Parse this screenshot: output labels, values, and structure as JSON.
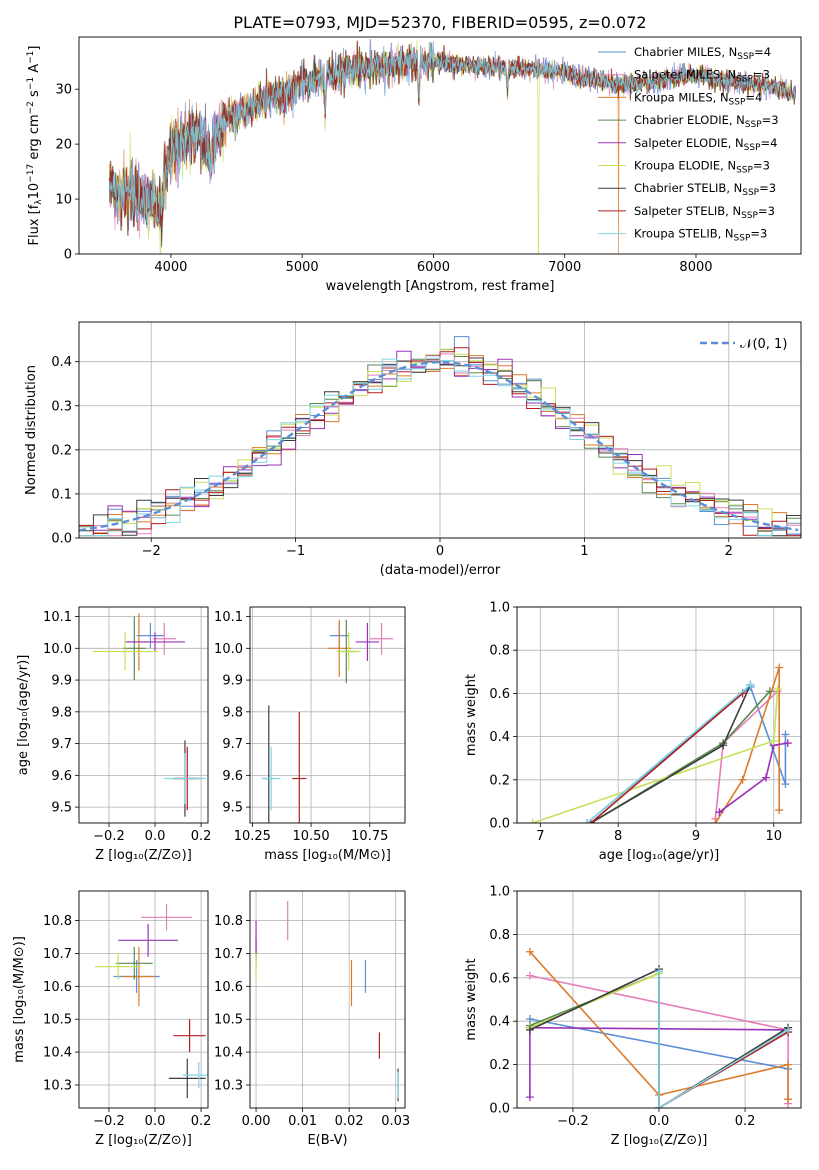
{
  "figure": {
    "title": "PLATE=0793, MJD=52370, FIBERID=0595, z=0.072"
  },
  "colors": {
    "Chabrier MILES": "#5b8fd6",
    "Salpeter MILES": "#e67dbb",
    "Kroupa MILES": "#de7b2a",
    "Chabrier ELODIE": "#5a8a50",
    "Salpeter ELODIE": "#9a33b8",
    "Kroupa ELODIE": "#c7e05a",
    "Chabrier STELIB": "#3d3d3d",
    "Salpeter STELIB": "#b21f1f",
    "Kroupa STELIB": "#7fd4e3"
  },
  "chart_data": [
    {
      "id": "spectrum",
      "type": "line",
      "xlabel": "wavelength [Angstrom, rest frame]",
      "ylabel": "Flux [f_λ 10^-17 erg cm^-2 s^-1 A^-1]",
      "xlim": [
        3300,
        8800
      ],
      "ylim": [
        0,
        39.5
      ],
      "xticks": [
        4000,
        5000,
        6000,
        7000,
        8000
      ],
      "yticks": [
        0,
        10,
        20,
        30
      ],
      "legend_position": "upper right",
      "series": [
        {
          "name": "Chabrier MILES",
          "nssp": "4"
        },
        {
          "name": "Salpeter MILES",
          "nssp": "3"
        },
        {
          "name": "Kroupa MILES",
          "nssp": "4"
        },
        {
          "name": "Chabrier ELODIE",
          "nssp": "3"
        },
        {
          "name": "Salpeter ELODIE",
          "nssp": "4"
        },
        {
          "name": "Kroupa ELODIE",
          "nssp": "3"
        },
        {
          "name": "Chabrier STELIB",
          "nssp": "3"
        },
        {
          "name": "Salpeter STELIB",
          "nssp": "3"
        },
        {
          "name": "Kroupa STELIB",
          "nssp": "3"
        }
      ],
      "continuum": {
        "x": [
          3530,
          3700,
          3800,
          3900,
          3950,
          4000,
          4100,
          4200,
          4300,
          4400,
          4600,
          4800,
          5000,
          5200,
          5400,
          5600,
          5800,
          6000,
          6200,
          6400,
          6600,
          6800,
          7000,
          7200,
          7400,
          7600,
          7800,
          8000,
          8200,
          8400,
          8600,
          8760
        ],
        "y": [
          12,
          11,
          10,
          9,
          13,
          19,
          21,
          22,
          18,
          24,
          26.5,
          29,
          31,
          32.5,
          33.5,
          34,
          34.8,
          35,
          34.5,
          34,
          34,
          33.6,
          33,
          32,
          31,
          31,
          32,
          32.5,
          31.5,
          31,
          30.5,
          29
        ]
      },
      "features": [
        {
          "x": 3930,
          "y": 6
        },
        {
          "x": 4305,
          "y": 16
        },
        {
          "x": 4861,
          "y": 27
        },
        {
          "x": 5175,
          "y": 25
        },
        {
          "x": 5890,
          "y": 28.5
        },
        {
          "x": 6563,
          "y": 30
        }
      ],
      "spikes": [
        {
          "series": "Kroupa ELODIE",
          "x": 3920,
          "y": 0
        },
        {
          "series": "Kroupa ELODIE",
          "x": 6800,
          "y": 0
        },
        {
          "series": "Kroupa MILES",
          "x": 7410,
          "y": 0
        }
      ]
    },
    {
      "id": "residuals",
      "type": "step",
      "xlabel": "(data-model)/error",
      "ylabel": "Normed distribution",
      "xlim": [
        -2.5,
        2.5
      ],
      "ylim": [
        0,
        0.49
      ],
      "xticks": [
        -2,
        -1,
        0,
        1,
        2
      ],
      "xtick_labels": [
        "−2",
        "−1",
        "0",
        "1",
        "2"
      ],
      "yticks": [
        0.0,
        0.1,
        0.2,
        0.3,
        0.4
      ],
      "yticks_labels": [
        "0.0",
        "0.1",
        "0.2",
        "0.3",
        "0.4"
      ],
      "bin_width": 0.1,
      "legend": "𝒩(0, 1)",
      "legend_position": "upper right",
      "reference": {
        "name": "𝒩(0, 1)",
        "mean": 0,
        "sigma": 1
      }
    },
    {
      "id": "age_vs_Z",
      "type": "scatter",
      "xlabel": "Z [log₁₀(Z/Z⊙)]",
      "ylabel": "age  [log₁₀(age/yr)]",
      "xlim": [
        -0.33,
        0.23
      ],
      "ylim": [
        9.45,
        10.13
      ],
      "xticks": [
        -0.2,
        0.0,
        0.2
      ],
      "xtick_labels": [
        "−0.2",
        "0.0",
        "0.2"
      ],
      "yticks": [
        9.5,
        9.6,
        9.7,
        9.8,
        9.9,
        10.0,
        10.1
      ],
      "points": [
        {
          "series": "Chabrier MILES",
          "x": -0.02,
          "y": 10.04,
          "xerr": 0.06,
          "yerr": 0.04
        },
        {
          "series": "Salpeter MILES",
          "x": 0.04,
          "y": 10.03,
          "xerr": 0.05,
          "yerr": 0.05
        },
        {
          "series": "Kroupa MILES",
          "x": -0.07,
          "y": 10.02,
          "xerr": 0.06,
          "yerr": 0.09
        },
        {
          "series": "Chabrier ELODIE",
          "x": -0.09,
          "y": 10.0,
          "xerr": 0.05,
          "yerr": 0.1
        },
        {
          "series": "Salpeter ELODIE",
          "x": 0.0,
          "y": 10.02,
          "xerr": 0.13,
          "yerr": 0.03
        },
        {
          "series": "Kroupa ELODIE",
          "x": -0.13,
          "y": 9.99,
          "xerr": 0.14,
          "yerr": 0.06
        },
        {
          "series": "Chabrier STELIB",
          "x": 0.13,
          "y": 9.59,
          "xerr": 0.05,
          "yerr": 0.12
        },
        {
          "series": "Salpeter STELIB",
          "x": 0.14,
          "y": 9.59,
          "xerr": 0.06,
          "yerr": 0.1
        },
        {
          "series": "Kroupa STELIB",
          "x": 0.13,
          "y": 9.59,
          "xerr": 0.09,
          "yerr": 0.08
        }
      ]
    },
    {
      "id": "age_vs_mass",
      "type": "scatter",
      "xlabel": "mass [log₁₀(M/M⊙)]",
      "ylabel": "",
      "xlim": [
        10.24,
        10.9
      ],
      "ylim": [
        9.45,
        10.13
      ],
      "xticks": [
        10.25,
        10.5,
        10.75
      ],
      "xtick_labels": [
        "10.25",
        "10.50",
        "10.75"
      ],
      "yticks": [
        9.5,
        9.6,
        9.7,
        9.8,
        9.9,
        10.0,
        10.1
      ],
      "points": [
        {
          "series": "Chabrier MILES",
          "x": 10.62,
          "y": 10.04,
          "xerr": 0.04,
          "yerr": 0.04
        },
        {
          "series": "Salpeter MILES",
          "x": 10.8,
          "y": 10.03,
          "xerr": 0.05,
          "yerr": 0.05
        },
        {
          "series": "Kroupa MILES",
          "x": 10.62,
          "y": 10.0,
          "xerr": 0.05,
          "yerr": 0.09
        },
        {
          "series": "Chabrier ELODIE",
          "x": 10.65,
          "y": 9.99,
          "xerr": 0.04,
          "yerr": 0.1
        },
        {
          "series": "Salpeter ELODIE",
          "x": 10.74,
          "y": 10.02,
          "xerr": 0.05,
          "yerr": 0.06
        },
        {
          "series": "Kroupa ELODIE",
          "x": 10.66,
          "y": 9.99,
          "xerr": 0.05,
          "yerr": 0.06
        },
        {
          "series": "Chabrier STELIB",
          "x": 10.32,
          "y": 9.59,
          "xerr": 0.02,
          "yerr": 0.23
        },
        {
          "series": "Salpeter STELIB",
          "x": 10.45,
          "y": 9.59,
          "xerr": 0.03,
          "yerr": 0.21
        },
        {
          "series": "Kroupa STELIB",
          "x": 10.33,
          "y": 9.59,
          "xerr": 0.04,
          "yerr": 0.1
        }
      ]
    },
    {
      "id": "weight_vs_age",
      "type": "line",
      "xlabel": "age  [log₁₀(age/yr)]",
      "ylabel": "mass weight",
      "xlim": [
        6.7,
        10.35
      ],
      "ylim": [
        0,
        1.0
      ],
      "xticks": [
        7,
        8,
        9,
        10
      ],
      "yticks": [
        0.0,
        0.2,
        0.4,
        0.6,
        0.8,
        1.0
      ],
      "yticks_labels": [
        "0.0",
        "0.2",
        "0.4",
        "0.6",
        "0.8",
        "1.0"
      ],
      "series": [
        {
          "name": "Chabrier MILES",
          "x": [
            7.6,
            9.7,
            10.15,
            10.15
          ],
          "y": [
            0.0,
            0.63,
            0.18,
            0.41
          ]
        },
        {
          "name": "Salpeter MILES",
          "x": [
            9.25,
            9.35,
            10.05
          ],
          "y": [
            0.02,
            0.37,
            0.61
          ]
        },
        {
          "name": "Kroupa MILES",
          "x": [
            9.25,
            9.6,
            10.07,
            10.07
          ],
          "y": [
            0.0,
            0.2,
            0.72,
            0.06
          ]
        },
        {
          "name": "Chabrier ELODIE",
          "x": [
            7.65,
            9.35,
            9.95
          ],
          "y": [
            0.0,
            0.37,
            0.61
          ]
        },
        {
          "name": "Salpeter ELODIE",
          "x": [
            9.3,
            9.9,
            10.0,
            10.18
          ],
          "y": [
            0.05,
            0.21,
            0.36,
            0.37
          ]
        },
        {
          "name": "Kroupa ELODIE",
          "x": [
            6.9,
            10.0,
            10.05
          ],
          "y": [
            0.0,
            0.38,
            0.62
          ]
        },
        {
          "name": "Chabrier STELIB",
          "x": [
            7.65,
            9.35,
            9.7
          ],
          "y": [
            0.0,
            0.36,
            0.64
          ]
        },
        {
          "name": "Salpeter STELIB",
          "x": [
            7.65,
            9.6
          ],
          "y": [
            0.0,
            0.6
          ]
        },
        {
          "name": "Kroupa STELIB",
          "x": [
            7.6,
            9.7
          ],
          "y": [
            0.0,
            0.64
          ]
        }
      ]
    },
    {
      "id": "mass_vs_Z",
      "type": "scatter",
      "xlabel": "Z [log₁₀(Z/Z⊙)]",
      "ylabel": "mass [log₁₀(M/M⊙)]",
      "xlim": [
        -0.33,
        0.23
      ],
      "ylim": [
        10.23,
        10.89
      ],
      "xticks": [
        -0.2,
        0.0,
        0.2
      ],
      "xtick_labels": [
        "−0.2",
        "0.0",
        "0.2"
      ],
      "yticks": [
        10.3,
        10.4,
        10.5,
        10.6,
        10.7,
        10.8
      ],
      "points": [
        {
          "series": "Chabrier MILES",
          "x": -0.08,
          "y": 10.63,
          "xerr": 0.1,
          "yerr": 0.05
        },
        {
          "series": "Salpeter MILES",
          "x": 0.05,
          "y": 10.81,
          "xerr": 0.11,
          "yerr": 0.04
        },
        {
          "series": "Kroupa MILES",
          "x": -0.07,
          "y": 10.63,
          "xerr": 0.07,
          "yerr": 0.09
        },
        {
          "series": "Chabrier ELODIE",
          "x": -0.09,
          "y": 10.67,
          "xerr": 0.08,
          "yerr": 0.05
        },
        {
          "series": "Salpeter ELODIE",
          "x": -0.03,
          "y": 10.74,
          "xerr": 0.13,
          "yerr": 0.05
        },
        {
          "series": "Kroupa ELODIE",
          "x": -0.16,
          "y": 10.66,
          "xerr": 0.1,
          "yerr": 0.04
        },
        {
          "series": "Chabrier STELIB",
          "x": 0.14,
          "y": 10.32,
          "xerr": 0.08,
          "yerr": 0.06
        },
        {
          "series": "Salpeter STELIB",
          "x": 0.15,
          "y": 10.45,
          "xerr": 0.07,
          "yerr": 0.05
        },
        {
          "series": "Kroupa STELIB",
          "x": 0.19,
          "y": 10.33,
          "xerr": 0.07,
          "yerr": 0.04
        }
      ]
    },
    {
      "id": "mass_vs_EBV",
      "type": "scatter",
      "xlabel": "E(B-V)",
      "ylabel": "",
      "xlim": [
        -0.0013,
        0.032
      ],
      "ylim": [
        10.23,
        10.89
      ],
      "xticks": [
        0.0,
        0.01,
        0.02,
        0.03
      ],
      "xtick_labels": [
        "0.00",
        "0.01",
        "0.02",
        "0.03"
      ],
      "yticks": [
        10.3,
        10.4,
        10.5,
        10.6,
        10.7,
        10.8
      ],
      "points": [
        {
          "series": "Chabrier MILES",
          "x": 0.0235,
          "y": 10.63,
          "xerr": 0,
          "yerr": 0.05
        },
        {
          "series": "Salpeter MILES",
          "x": 0.0068,
          "y": 10.8,
          "xerr": 0,
          "yerr": 0.06
        },
        {
          "series": "Kroupa MILES",
          "x": 0.0205,
          "y": 10.61,
          "xerr": 0,
          "yerr": 0.07
        },
        {
          "series": "Chabrier ELODIE",
          "x": 0.0,
          "y": 10.7,
          "xerr": 0,
          "yerr": 0.04
        },
        {
          "series": "Salpeter ELODIE",
          "x": 0.0,
          "y": 10.74,
          "xerr": 0,
          "yerr": 0.06
        },
        {
          "series": "Kroupa ELODIE",
          "x": 0.0,
          "y": 10.66,
          "xerr": 0,
          "yerr": 0.04
        },
        {
          "series": "Chabrier STELIB",
          "x": 0.0305,
          "y": 10.3,
          "xerr": 0,
          "yerr": 0.05
        },
        {
          "series": "Salpeter STELIB",
          "x": 0.0265,
          "y": 10.42,
          "xerr": 0,
          "yerr": 0.04
        },
        {
          "series": "Kroupa STELIB",
          "x": 0.0305,
          "y": 10.3,
          "xerr": 0,
          "yerr": 0.04
        }
      ]
    },
    {
      "id": "weight_vs_Z",
      "type": "line",
      "xlabel": "Z [log₁₀(Z/Z⊙)]",
      "ylabel": "mass weight",
      "xlim": [
        -0.33,
        0.33
      ],
      "ylim": [
        0,
        1.0
      ],
      "xticks": [
        -0.2,
        0.0,
        0.2
      ],
      "xtick_labels": [
        "−0.2",
        "0.0",
        "0.2"
      ],
      "yticks": [
        0.0,
        0.2,
        0.4,
        0.6,
        0.8,
        1.0
      ],
      "yticks_labels": [
        "0.0",
        "0.2",
        "0.4",
        "0.6",
        "0.8",
        "1.0"
      ],
      "series": [
        {
          "name": "Chabrier MILES",
          "x": [
            -0.3,
            0.3
          ],
          "y": [
            0.41,
            0.18
          ]
        },
        {
          "name": "Salpeter MILES",
          "x": [
            -0.3,
            0.3,
            0.3
          ],
          "y": [
            0.61,
            0.36,
            0.02
          ]
        },
        {
          "name": "Kroupa MILES",
          "x": [
            -0.3,
            0.0,
            0.3,
            0.3
          ],
          "y": [
            0.72,
            0.06,
            0.2,
            0.04
          ]
        },
        {
          "name": "Chabrier ELODIE",
          "x": [
            -0.3,
            0.0,
            0.0
          ],
          "y": [
            0.38,
            0.62,
            0.0
          ]
        },
        {
          "name": "Salpeter ELODIE",
          "x": [
            -0.3,
            -0.3,
            0.3
          ],
          "y": [
            0.05,
            0.37,
            0.36
          ]
        },
        {
          "name": "Kroupa ELODIE",
          "x": [
            -0.3,
            0.0
          ],
          "y": [
            0.37,
            0.62
          ]
        },
        {
          "name": "Chabrier STELIB",
          "x": [
            -0.3,
            0.0,
            0.0,
            0.3
          ],
          "y": [
            0.36,
            0.64,
            0.0,
            0.37
          ]
        },
        {
          "name": "Salpeter STELIB",
          "x": [
            0.0,
            0.3
          ],
          "y": [
            0.0,
            0.35
          ]
        },
        {
          "name": "Kroupa STELIB",
          "x": [
            0.0,
            0.0,
            0.3
          ],
          "y": [
            0.63,
            0.0,
            0.36
          ]
        }
      ]
    }
  ]
}
